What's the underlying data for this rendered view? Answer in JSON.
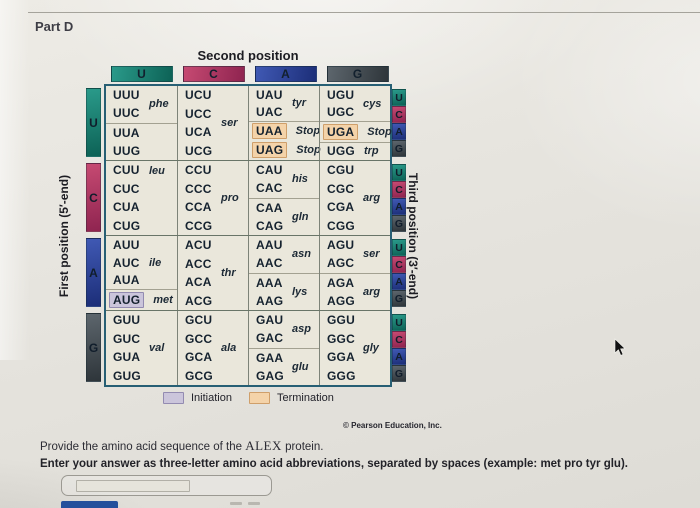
{
  "window": {
    "part_label": "Part D"
  },
  "figure": {
    "title": "Second position",
    "first_position_label": "First position (5′-end)",
    "third_position_label": "Third position (3′-end)",
    "credit": "© Pearson Education, Inc.",
    "legend": {
      "initiation": "Initiation",
      "termination": "Termination"
    },
    "second_position": [
      "U",
      "C",
      "A",
      "G"
    ],
    "first_position": [
      "U",
      "C",
      "A",
      "G"
    ],
    "third_position": [
      "U",
      "C",
      "A",
      "G"
    ],
    "colors": {
      "U": {
        "light": "#2a9a8a",
        "dark": "#0d6256"
      },
      "C": {
        "light": "#c64a72",
        "dark": "#8f2450"
      },
      "A": {
        "light": "#4059b4",
        "dark": "#1c2e78"
      },
      "G": {
        "light": "#5d666d",
        "dark": "#2e353a"
      },
      "termination_bg": "#f4d3a9",
      "termination_border": "#cf9f6a",
      "initiation_bg": "#cbc5db",
      "initiation_border": "#938bb1"
    },
    "rows": [
      {
        "base": "U",
        "cells": [
          {
            "groups": [
              {
                "codons": [
                  "UUU",
                  "UUC"
                ],
                "label": "phe"
              },
              {
                "codons": [
                  "UUA",
                  "UUG"
                ]
              }
            ]
          },
          {
            "groups": [
              {
                "codons": [
                  "UCU",
                  "UCC",
                  "UCA",
                  "UCG"
                ],
                "label": "ser"
              }
            ]
          },
          {
            "groups": [
              {
                "codons": [
                  "UAU",
                  "UAC"
                ],
                "label": "tyr"
              },
              {
                "codons": [
                  "UAA",
                  "UAG"
                ],
                "line_labels": [
                  "Stop",
                  "Stop"
                ],
                "hl": "term"
              }
            ]
          },
          {
            "groups": [
              {
                "codons": [
                  "UGU",
                  "UGC"
                ],
                "label": "cys"
              },
              {
                "codons": [
                  "UGA"
                ],
                "line_labels": [
                  "Stop"
                ],
                "hl": "term"
              },
              {
                "codons": [
                  "UGG"
                ],
                "line_labels": [
                  "trp"
                ]
              }
            ]
          }
        ]
      },
      {
        "base": "C",
        "cells": [
          {
            "groups": [
              {
                "codons": [
                  "CUU",
                  "CUC",
                  "CUA",
                  "CUG"
                ],
                "label": "leu",
                "label_top": true
              }
            ]
          },
          {
            "groups": [
              {
                "codons": [
                  "CCU",
                  "CCC",
                  "CCA",
                  "CCG"
                ],
                "label": "pro"
              }
            ]
          },
          {
            "groups": [
              {
                "codons": [
                  "CAU",
                  "CAC"
                ],
                "label": "his"
              },
              {
                "codons": [
                  "CAA",
                  "CAG"
                ],
                "label": "gln"
              }
            ]
          },
          {
            "groups": [
              {
                "codons": [
                  "CGU",
                  "CGC",
                  "CGA",
                  "CGG"
                ],
                "label": "arg"
              }
            ]
          }
        ]
      },
      {
        "base": "A",
        "cells": [
          {
            "groups": [
              {
                "codons": [
                  "AUU",
                  "AUC",
                  "AUA"
                ],
                "label": "ile"
              },
              {
                "codons": [
                  "AUG"
                ],
                "line_labels": [
                  "met"
                ],
                "hl": "init"
              }
            ]
          },
          {
            "groups": [
              {
                "codons": [
                  "ACU",
                  "ACC",
                  "ACA",
                  "ACG"
                ],
                "label": "thr"
              }
            ]
          },
          {
            "groups": [
              {
                "codons": [
                  "AAU",
                  "AAC"
                ],
                "label": "asn"
              },
              {
                "codons": [
                  "AAA",
                  "AAG"
                ],
                "label": "lys"
              }
            ]
          },
          {
            "groups": [
              {
                "codons": [
                  "AGU",
                  "AGC"
                ],
                "label": "ser"
              },
              {
                "codons": [
                  "AGA",
                  "AGG"
                ],
                "label": "arg"
              }
            ]
          }
        ]
      },
      {
        "base": "G",
        "cells": [
          {
            "groups": [
              {
                "codons": [
                  "GUU",
                  "GUC",
                  "GUA",
                  "GUG"
                ],
                "label": "val"
              }
            ]
          },
          {
            "groups": [
              {
                "codons": [
                  "GCU",
                  "GCC",
                  "GCA",
                  "GCG"
                ],
                "label": "ala"
              }
            ]
          },
          {
            "groups": [
              {
                "codons": [
                  "GAU",
                  "GAC"
                ],
                "label": "asp"
              },
              {
                "codons": [
                  "GAA",
                  "GAG"
                ],
                "label": "glu"
              }
            ]
          },
          {
            "groups": [
              {
                "codons": [
                  "GGU",
                  "GGC",
                  "GGA",
                  "GGG"
                ],
                "label": "gly"
              }
            ]
          }
        ]
      }
    ]
  },
  "question": {
    "prompt_prefix": "Provide the amino acid sequence of the ",
    "protein_name": "ALEX",
    "prompt_suffix": " protein.",
    "instruction": "Enter your answer as three-letter amino acid abbreviations, separated by spaces (example: met pro tyr glu).",
    "answer_value": ""
  }
}
